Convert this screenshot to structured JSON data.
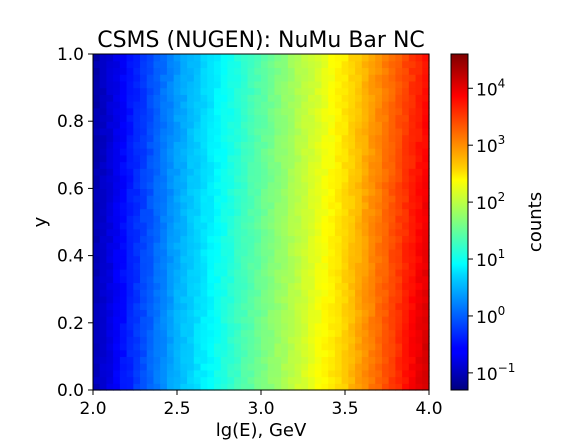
{
  "chart_data": {
    "type": "heatmap",
    "title": "CSMS (NUGEN): NuMu Bar NC",
    "xlabel": "lg(E), GeV",
    "ylabel": "y",
    "xlim": [
      2.0,
      4.0
    ],
    "ylim": [
      0.0,
      1.0
    ],
    "x_ticks": [
      "2.0",
      "2.5",
      "3.0",
      "3.5",
      "4.0"
    ],
    "x_tick_values": [
      2.0,
      2.5,
      3.0,
      3.5,
      4.0
    ],
    "y_ticks": [
      "0.0",
      "0.2",
      "0.4",
      "0.6",
      "0.8",
      "1.0"
    ],
    "y_tick_values": [
      0.0,
      0.2,
      0.4,
      0.6,
      0.8,
      1.0
    ],
    "colormap": "jet",
    "colorbar": {
      "label": "counts",
      "scale": "log",
      "range": [
        0.05,
        40000
      ],
      "ticks": [
        {
          "value": 0.1,
          "base": "10",
          "exp": "−1"
        },
        {
          "value": 1,
          "base": "10",
          "exp": "0"
        },
        {
          "value": 10,
          "base": "10",
          "exp": "1"
        },
        {
          "value": 100,
          "base": "10",
          "exp": "2"
        },
        {
          "value": 1000,
          "base": "10",
          "exp": "3"
        },
        {
          "value": 10000,
          "base": "10",
          "exp": "4"
        }
      ]
    },
    "bins": {
      "nx": 50,
      "ny": 50
    },
    "counts_model": {
      "x": [
        2.0,
        2.5,
        3.0,
        3.5,
        4.0
      ],
      "log10_counts_at_y0": [
        -1.0,
        0.5,
        1.6,
        2.7,
        4.2
      ],
      "log10_counts_at_y1": [
        -1.1,
        0.3,
        1.4,
        2.5,
        3.8
      ]
    }
  }
}
